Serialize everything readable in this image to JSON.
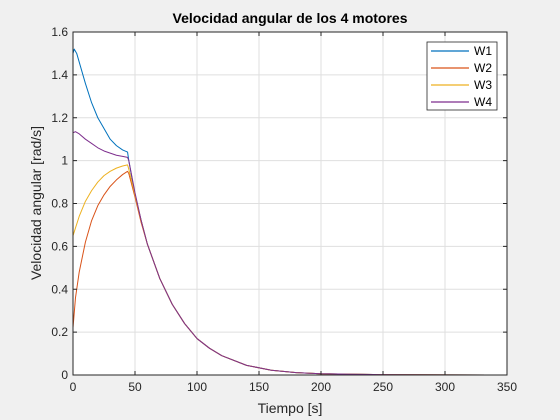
{
  "chart_data": {
    "type": "line",
    "title": "Velocidad angular de los 4 motores",
    "xlabel": "Tiempo [s]",
    "ylabel": "Velocidad angular [rad/s]",
    "xlim": [
      0,
      350
    ],
    "ylim": [
      0,
      1.6
    ],
    "xticks": [
      0,
      50,
      100,
      150,
      200,
      250,
      300,
      350
    ],
    "yticks": [
      0,
      0.2,
      0.4,
      0.6,
      0.8,
      1,
      1.2,
      1.4,
      1.6
    ],
    "xtick_labels": [
      "0",
      "50",
      "100",
      "150",
      "200",
      "250",
      "300",
      "350"
    ],
    "ytick_labels": [
      "0",
      "0.2",
      "0.4",
      "0.6",
      "0.8",
      "1",
      "1.2",
      "1.4",
      "1.6"
    ],
    "grid": true,
    "legend_position": "top-right",
    "series": [
      {
        "name": "W1",
        "color": "#0072BD",
        "points": [
          [
            0,
            0
          ],
          [
            0,
            1.5
          ],
          [
            1,
            1.52
          ],
          [
            3,
            1.5
          ],
          [
            6,
            1.44
          ],
          [
            10,
            1.36
          ],
          [
            15,
            1.27
          ],
          [
            20,
            1.2
          ],
          [
            25,
            1.15
          ],
          [
            30,
            1.1
          ],
          [
            35,
            1.07
          ],
          [
            40,
            1.05
          ],
          [
            44,
            1.04
          ],
          [
            45,
            1.0
          ],
          [
            50,
            0.84
          ],
          [
            55,
            0.72
          ],
          [
            60,
            0.61
          ],
          [
            70,
            0.45
          ],
          [
            80,
            0.33
          ],
          [
            90,
            0.24
          ],
          [
            100,
            0.17
          ],
          [
            110,
            0.125
          ],
          [
            120,
            0.09
          ],
          [
            140,
            0.045
          ],
          [
            160,
            0.022
          ],
          [
            180,
            0.011
          ],
          [
            200,
            0.006
          ],
          [
            250,
            0.0015
          ],
          [
            300,
            0.0004
          ],
          [
            335,
            0.0002
          ]
        ]
      },
      {
        "name": "W2",
        "color": "#D95319",
        "points": [
          [
            0,
            0
          ],
          [
            0,
            0.22
          ],
          [
            2,
            0.36
          ],
          [
            5,
            0.48
          ],
          [
            10,
            0.62
          ],
          [
            15,
            0.72
          ],
          [
            20,
            0.79
          ],
          [
            25,
            0.84
          ],
          [
            30,
            0.88
          ],
          [
            35,
            0.91
          ],
          [
            40,
            0.935
          ],
          [
            44,
            0.95
          ],
          [
            45,
            0.94
          ],
          [
            50,
            0.83
          ],
          [
            55,
            0.71
          ],
          [
            60,
            0.61
          ],
          [
            70,
            0.45
          ],
          [
            80,
            0.33
          ],
          [
            90,
            0.24
          ],
          [
            100,
            0.17
          ],
          [
            110,
            0.125
          ],
          [
            120,
            0.09
          ],
          [
            140,
            0.045
          ],
          [
            160,
            0.022
          ],
          [
            180,
            0.011
          ],
          [
            200,
            0.006
          ],
          [
            250,
            0.0015
          ],
          [
            300,
            0.0004
          ],
          [
            335,
            0.0002
          ]
        ]
      },
      {
        "name": "W3",
        "color": "#EDB120",
        "points": [
          [
            0,
            0
          ],
          [
            0,
            0.65
          ],
          [
            5,
            0.74
          ],
          [
            10,
            0.81
          ],
          [
            15,
            0.86
          ],
          [
            20,
            0.9
          ],
          [
            25,
            0.93
          ],
          [
            30,
            0.95
          ],
          [
            35,
            0.965
          ],
          [
            40,
            0.975
          ],
          [
            44,
            0.98
          ],
          [
            45,
            0.96
          ],
          [
            50,
            0.84
          ],
          [
            55,
            0.72
          ],
          [
            60,
            0.61
          ],
          [
            70,
            0.45
          ],
          [
            80,
            0.33
          ],
          [
            90,
            0.24
          ],
          [
            100,
            0.17
          ],
          [
            110,
            0.125
          ],
          [
            120,
            0.09
          ],
          [
            140,
            0.045
          ],
          [
            160,
            0.022
          ],
          [
            180,
            0.011
          ],
          [
            200,
            0.006
          ],
          [
            250,
            0.0015
          ],
          [
            300,
            0.0004
          ],
          [
            335,
            0.0002
          ]
        ]
      },
      {
        "name": "W4",
        "color": "#7E2F8E",
        "points": [
          [
            0,
            0
          ],
          [
            0,
            1.13
          ],
          [
            2,
            1.135
          ],
          [
            5,
            1.125
          ],
          [
            10,
            1.1
          ],
          [
            15,
            1.08
          ],
          [
            20,
            1.06
          ],
          [
            25,
            1.045
          ],
          [
            30,
            1.035
          ],
          [
            35,
            1.025
          ],
          [
            40,
            1.02
          ],
          [
            44,
            1.015
          ],
          [
            45,
            1.0
          ],
          [
            50,
            0.85
          ],
          [
            55,
            0.72
          ],
          [
            60,
            0.61
          ],
          [
            70,
            0.45
          ],
          [
            80,
            0.33
          ],
          [
            90,
            0.24
          ],
          [
            100,
            0.17
          ],
          [
            110,
            0.125
          ],
          [
            120,
            0.09
          ],
          [
            140,
            0.045
          ],
          [
            160,
            0.022
          ],
          [
            180,
            0.011
          ],
          [
            200,
            0.006
          ],
          [
            250,
            0.0015
          ],
          [
            300,
            0.0004
          ],
          [
            335,
            0.0002
          ]
        ]
      }
    ]
  }
}
